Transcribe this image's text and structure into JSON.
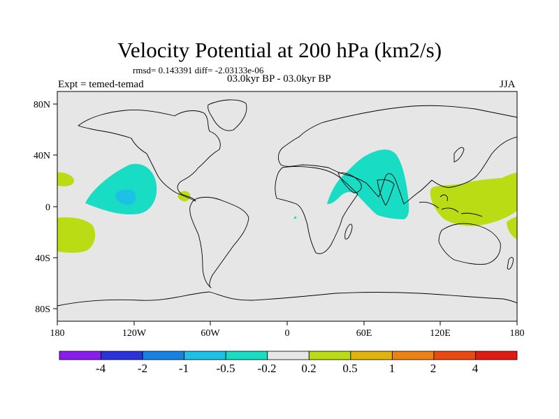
{
  "title": "Velocity Potential at 200 hPa (km2/s)",
  "subtitle": "rmsd= 0.143391 diff= -2.03133e-06",
  "period": "03.0kyr BP - 03.0kyr BP",
  "experiment": "Expt = temed-temad",
  "season": "JJA",
  "colors": {
    "ocean": "#e6e6e6",
    "coastline": "#000000",
    "negative_small": "#19dcc4",
    "negative_mid": "#1ec1e6",
    "positive_small": "#b9dc14"
  },
  "axes": {
    "lat_labels": [
      "80N",
      "40N",
      "0",
      "40S",
      "80S"
    ],
    "lon_labels": [
      "180",
      "120W",
      "60W",
      "0",
      "60E",
      "120E",
      "180"
    ]
  },
  "colorbar": {
    "colors": [
      "#8a1cf0",
      "#2a32dc",
      "#1882e4",
      "#1ec1e6",
      "#19dcc4",
      "#e6e6e6",
      "#b9dc14",
      "#e0b40a",
      "#ec8214",
      "#ea4a12",
      "#e11a14"
    ],
    "labels": [
      "-4",
      "-2",
      "-1",
      "-0.5",
      "-0.2",
      "0.2",
      "0.5",
      "1",
      "2",
      "4"
    ]
  },
  "anomalies": [
    {
      "name": "pacific-negative-anomaly",
      "sign": "negative",
      "level": "-0.5 to -0.2"
    },
    {
      "name": "pacific-core-anomaly",
      "sign": "negative",
      "level": "-1 to -0.5"
    },
    {
      "name": "indian-ocean-negative-anomaly",
      "sign": "negative",
      "level": "-0.5 to -0.2"
    },
    {
      "name": "maritime-continent-positive-anomaly",
      "sign": "positive",
      "level": "0.2 to 0.5"
    },
    {
      "name": "central-america-positive-anomaly",
      "sign": "positive",
      "level": "0.2 to 0.5"
    },
    {
      "name": "south-pacific-positive-anomaly",
      "sign": "positive",
      "level": "0.2 to 0.5"
    },
    {
      "name": "north-pacific-positive-anomaly",
      "sign": "positive",
      "level": "0.2 to 0.5"
    }
  ]
}
